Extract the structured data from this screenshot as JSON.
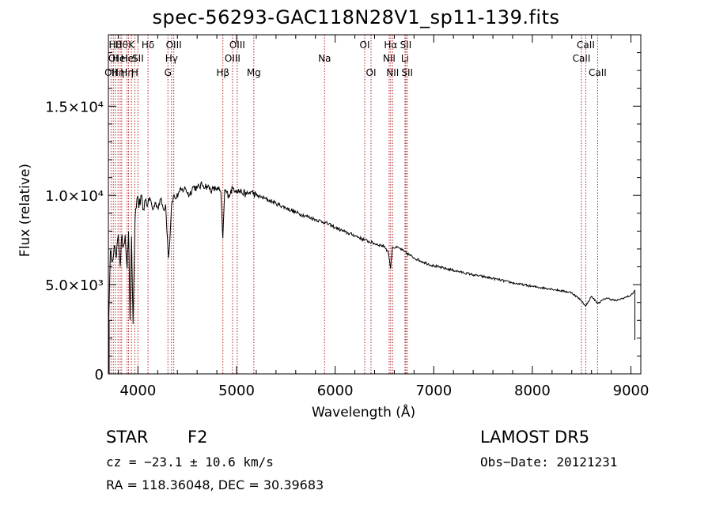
{
  "chart_data": {
    "type": "line",
    "title": "spec-56293-GAC118N28V1_sp11-139.fits",
    "xlabel": "Wavelength (Å)",
    "ylabel": "Flux (relative)",
    "xlim": [
      3700,
      9100
    ],
    "ylim": [
      0,
      19000
    ],
    "x_ticks": [
      {
        "value": 4000,
        "label": "4000"
      },
      {
        "value": 5000,
        "label": "5000"
      },
      {
        "value": 6000,
        "label": "6000"
      },
      {
        "value": 7000,
        "label": "7000"
      },
      {
        "value": 8000,
        "label": "8000"
      },
      {
        "value": 9000,
        "label": "9000"
      }
    ],
    "y_ticks": [
      {
        "value": 0,
        "label": "0"
      },
      {
        "value": 5000,
        "label": "5.0×10³"
      },
      {
        "value": 10000,
        "label": "1.0×10⁴"
      },
      {
        "value": 15000,
        "label": "1.5×10⁴"
      }
    ],
    "grid": false,
    "line_color": "#000000",
    "series": [
      {
        "x": [
          3700,
          3720,
          3740,
          3760,
          3780,
          3800,
          3820,
          3835,
          3850,
          3870,
          3890,
          3905,
          3920,
          3935,
          3950,
          3970,
          3990,
          4010,
          4030,
          4050,
          4080,
          4100,
          4120,
          4150,
          4180,
          4200,
          4230,
          4260,
          4280,
          4300,
          4310,
          4320,
          4340,
          4360,
          4380,
          4420,
          4480,
          4520,
          4560,
          4600,
          4650,
          4700,
          4750,
          4800,
          4840,
          4861,
          4880,
          4920,
          4960,
          5000,
          5050,
          5100,
          5150,
          5200,
          5250,
          5300,
          5400,
          5500,
          5600,
          5700,
          5800,
          5890,
          6000,
          6100,
          6200,
          6300,
          6400,
          6500,
          6540,
          6563,
          6580,
          6650,
          6700,
          6800,
          6900,
          7000,
          7200,
          7400,
          7600,
          7800,
          8000,
          8200,
          8400,
          8498,
          8542,
          8600,
          8662,
          8750,
          8850,
          8950,
          9000,
          9030,
          9040
        ],
        "y": [
          2000,
          6900,
          6300,
          7200,
          6500,
          7800,
          6000,
          7700,
          7100,
          7800,
          5900,
          8000,
          3000,
          7700,
          2800,
          8600,
          9800,
          9300,
          10000,
          9200,
          9800,
          9500,
          9900,
          9200,
          9600,
          9300,
          9800,
          9200,
          9500,
          7500,
          6500,
          7200,
          9400,
          10000,
          9800,
          10200,
          10400,
          10000,
          10500,
          10400,
          10600,
          10500,
          10300,
          10400,
          10200,
          7600,
          10300,
          10000,
          10400,
          10300,
          10200,
          10050,
          10200,
          10000,
          9900,
          9800,
          9550,
          9300,
          9050,
          8850,
          8650,
          8500,
          8200,
          7950,
          7750,
          7500,
          7300,
          7150,
          6800,
          5900,
          7100,
          7050,
          6850,
          6500,
          6250,
          6050,
          5800,
          5550,
          5350,
          5100,
          4900,
          4750,
          4550,
          4100,
          3800,
          4350,
          3950,
          4250,
          4100,
          4300,
          4400,
          4600,
          4700
        ]
      }
    ],
    "lines": [
      {
        "wl": 3727,
        "label": "OII",
        "tier": 3
      },
      {
        "wl": 3750,
        "label": "OI",
        "tier": 2
      },
      {
        "wl": 3770,
        "label": "Hθ",
        "tier": 1
      },
      {
        "wl": 3798,
        "label": "Hη",
        "tier": 3
      },
      {
        "wl": 3820,
        "label": "HeI",
        "tier": 2
      },
      {
        "wl": 3835,
        "label": "Hθ",
        "tier": 1
      },
      {
        "wl": 3889,
        "label": "Hη",
        "tier": 3
      },
      {
        "wl": 3905,
        "label": "HeI",
        "tier": 2
      },
      {
        "wl": 3934,
        "label": "K",
        "tier": 1
      },
      {
        "wl": 3968,
        "label": "H",
        "tier": 3
      },
      {
        "wl": 4000,
        "label": "SII",
        "tier": 2
      },
      {
        "wl": 4102,
        "label": "Hδ",
        "tier": 1
      },
      {
        "wl": 4304,
        "label": "G",
        "tier": 3
      },
      {
        "wl": 4340,
        "label": "Hγ",
        "tier": 2
      },
      {
        "wl": 4363,
        "label": "OIII",
        "tier": 1
      },
      {
        "wl": 4861,
        "label": "Hβ",
        "tier": 3
      },
      {
        "wl": 4959,
        "label": "OIII",
        "tier": 2
      },
      {
        "wl": 5007,
        "label": "OIII",
        "tier": 1
      },
      {
        "wl": 5175,
        "label": "Mg",
        "tier": 3
      },
      {
        "wl": 5893,
        "label": "Na",
        "tier": 2
      },
      {
        "wl": 6300,
        "label": "OI",
        "tier": 1
      },
      {
        "wl": 6364,
        "label": "OI",
        "tier": 3
      },
      {
        "wl": 6548,
        "label": "NII",
        "tier": 2
      },
      {
        "wl": 6563,
        "label": "Hα",
        "tier": 1
      },
      {
        "wl": 6583,
        "label": "NII",
        "tier": 3
      },
      {
        "wl": 6708,
        "label": "Li",
        "tier": 2
      },
      {
        "wl": 6717,
        "label": "SII",
        "tier": 1
      },
      {
        "wl": 6731,
        "label": "SII",
        "tier": 3
      },
      {
        "wl": 8498,
        "label": "CaII",
        "tier": 2
      },
      {
        "wl": 8542,
        "label": "CaII",
        "tier": 1
      },
      {
        "wl": 8662,
        "label": "CaII",
        "tier": 3
      }
    ]
  },
  "info": {
    "class": "STAR",
    "subclass": "F2",
    "release": "LAMOST  DR5",
    "cz": "cz = −23.1 ± 10.6 km/s",
    "obs_date": "Obs−Date: 20121231",
    "coords": "RA = 118.36048, DEC =  30.39683"
  }
}
